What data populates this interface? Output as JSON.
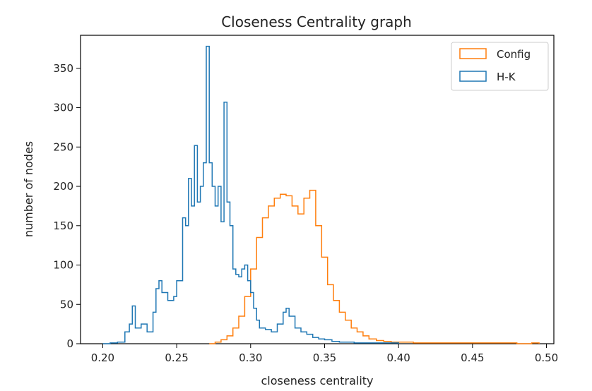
{
  "chart_data": {
    "type": "histogram-step",
    "title": "Closeness Centrality graph",
    "xlabel": "closeness centrality",
    "ylabel": "number of nodes",
    "xlim": [
      0.185,
      0.505
    ],
    "ylim": [
      0,
      392
    ],
    "xticks": [
      0.2,
      0.25,
      0.3,
      0.35,
      0.4,
      0.45,
      0.5
    ],
    "xtick_labels": [
      "0.20",
      "0.25",
      "0.30",
      "0.35",
      "0.40",
      "0.45",
      "0.50"
    ],
    "yticks": [
      0,
      50,
      100,
      150,
      200,
      250,
      300,
      350
    ],
    "ytick_labels": [
      "0",
      "50",
      "100",
      "150",
      "200",
      "250",
      "300",
      "350"
    ],
    "grid": false,
    "legend_position": "top-right",
    "series": [
      {
        "name": "Config",
        "color": "#ff7f0e",
        "x": [
          0.272,
          0.276,
          0.28,
          0.284,
          0.288,
          0.292,
          0.296,
          0.3,
          0.304,
          0.308,
          0.312,
          0.316,
          0.32,
          0.324,
          0.328,
          0.332,
          0.336,
          0.34,
          0.344,
          0.348,
          0.352,
          0.356,
          0.36,
          0.364,
          0.368,
          0.372,
          0.376,
          0.38,
          0.385,
          0.39,
          0.395,
          0.4,
          0.41,
          0.42,
          0.43,
          0.44,
          0.45,
          0.46,
          0.47,
          0.48,
          0.49,
          0.495
        ],
        "y": [
          0,
          2,
          5,
          10,
          20,
          35,
          60,
          95,
          135,
          160,
          175,
          185,
          190,
          188,
          175,
          165,
          185,
          195,
          150,
          110,
          75,
          55,
          40,
          30,
          20,
          15,
          10,
          6,
          4,
          3,
          2,
          2,
          1,
          1,
          1,
          1,
          1,
          1,
          1,
          0,
          1,
          0
        ]
      },
      {
        "name": "H-K",
        "color": "#1f77b4",
        "x": [
          0.2,
          0.205,
          0.21,
          0.215,
          0.218,
          0.22,
          0.222,
          0.226,
          0.23,
          0.234,
          0.236,
          0.238,
          0.24,
          0.244,
          0.248,
          0.25,
          0.254,
          0.256,
          0.258,
          0.26,
          0.262,
          0.264,
          0.266,
          0.268,
          0.27,
          0.272,
          0.274,
          0.276,
          0.278,
          0.28,
          0.282,
          0.284,
          0.286,
          0.288,
          0.29,
          0.292,
          0.294,
          0.296,
          0.298,
          0.3,
          0.302,
          0.304,
          0.306,
          0.31,
          0.314,
          0.318,
          0.322,
          0.324,
          0.326,
          0.33,
          0.334,
          0.338,
          0.342,
          0.346,
          0.35,
          0.355,
          0.36,
          0.365,
          0.37,
          0.38,
          0.39,
          0.4
        ],
        "y": [
          0,
          1,
          2,
          15,
          25,
          48,
          20,
          25,
          15,
          40,
          70,
          80,
          65,
          55,
          60,
          80,
          160,
          150,
          210,
          175,
          252,
          180,
          200,
          230,
          378,
          230,
          200,
          175,
          200,
          155,
          307,
          180,
          150,
          95,
          88,
          85,
          95,
          100,
          80,
          65,
          45,
          30,
          20,
          18,
          15,
          25,
          40,
          45,
          35,
          20,
          15,
          12,
          8,
          6,
          5,
          3,
          2,
          2,
          1,
          1,
          1,
          0
        ]
      }
    ]
  }
}
